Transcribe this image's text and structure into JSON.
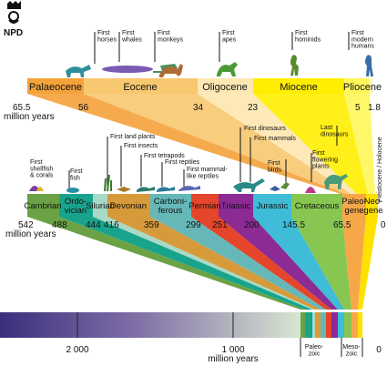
{
  "logo": {
    "text": "NPD"
  },
  "cenozoic_epochs": [
    {
      "name": "Palaeocene",
      "color": "#f4a23a"
    },
    {
      "name": "Eocene",
      "color": "#f8c870"
    },
    {
      "name": "Oligocene",
      "color": "#fde8b4"
    },
    {
      "name": "Miocene",
      "color": "#ffee00"
    },
    {
      "name": "Pliocene",
      "color": "#fff65a"
    }
  ],
  "holocene_label": "Pleistocene / Holocene",
  "epoch_ages": [
    "56",
    "34",
    "23",
    "5",
    "1.8"
  ],
  "epoch_start": {
    "value": "65.5",
    "unit": "million years"
  },
  "periods": [
    {
      "name": "Cambrian",
      "color": "#6aa245"
    },
    {
      "name": "Ordo-\nvician",
      "color": "#18a48c"
    },
    {
      "name": "Silurian",
      "color": "#a9d9c7"
    },
    {
      "name": "Devonian",
      "color": "#d79a3b"
    },
    {
      "name": "Carboni-\nferous",
      "color": "#66b8b8"
    },
    {
      "name": "Permian",
      "color": "#e5452a"
    },
    {
      "name": "Triassic",
      "color": "#8b2b93"
    },
    {
      "name": "Jurassic",
      "color": "#3fbcd7"
    },
    {
      "name": "Cretaceous",
      "color": "#88c652"
    },
    {
      "name": "Paleo-\ngene",
      "color": "#f6a849"
    },
    {
      "name": "Neo-\ngene",
      "color": "#ffe100"
    }
  ],
  "period_ages": [
    "488",
    "444",
    "416",
    "359",
    "299",
    "251",
    "200",
    "145.5",
    "65.5",
    "0"
  ],
  "period_start": {
    "value": "542",
    "unit": "million years"
  },
  "firsts_top": [
    "First\nhorses",
    "First\nwhales",
    "First\nmonkeys",
    "First\napes",
    "First\nhominids",
    "First\nmodern\nhumans"
  ],
  "firsts_bottom": [
    "First\nshellfish\n& corals",
    "First\nfish",
    "First land plants",
    "First insects",
    "First tetrapods",
    "First reptiles",
    "First mammal-\nlike reptiles",
    "First dinosaurs",
    "First mammals",
    "First\nbirds",
    "Last\ndinosaurs",
    "First\nflowering\nplants"
  ],
  "timeline": {
    "ticks": [
      "2 000",
      "1 000"
    ],
    "unit": "million years",
    "eras": [
      "Paleo-\nzoic",
      "Meso-\nzoic"
    ],
    "zero": "0"
  }
}
